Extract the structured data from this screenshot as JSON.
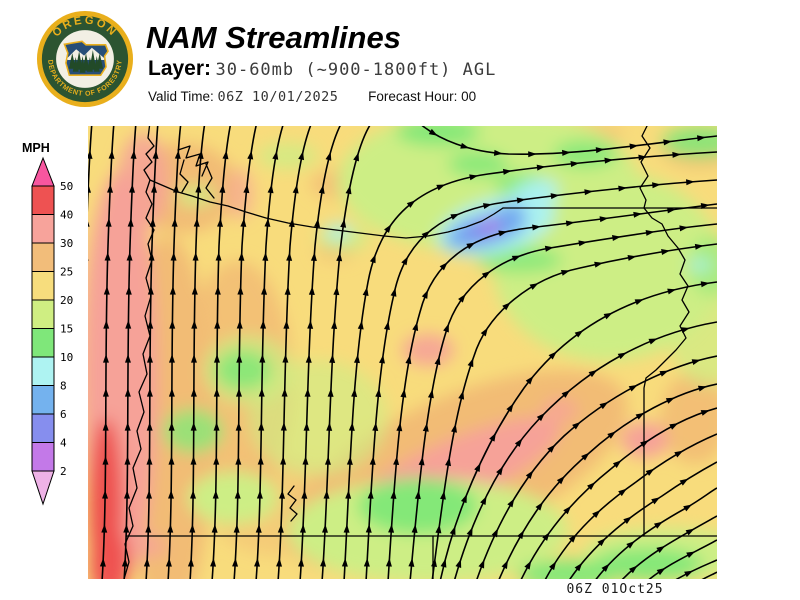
{
  "header": {
    "title": "NAM Streamlines",
    "layer_label": "Layer:",
    "layer_value": "30-60mb (~900-1800ft) AGL",
    "valid_time_label": "Valid Time:",
    "valid_time_value": "06Z 10/01/2025",
    "forecast_hour_label": "Forecast Hour:",
    "forecast_hour_value": "00"
  },
  "logo": {
    "text_top": "OREGON",
    "text_bottom": "DEPARTMENT OF FORESTRY",
    "ring_color": "#2c5431",
    "gold_color": "#e9af1c"
  },
  "legend": {
    "title": "MPH",
    "ticks": [
      "50",
      "40",
      "30",
      "25",
      "20",
      "15",
      "10",
      "8",
      "6",
      "4",
      "2"
    ],
    "colors": {
      "above_max": "#f7569f",
      "bands": [
        "#ee5252",
        "#f7a39b",
        "#f2bd7a",
        "#f7dd7d",
        "#cfee82",
        "#7fe77a",
        "#aef3f2",
        "#74b2ee",
        "#868eee",
        "#c379e8"
      ],
      "below_min": "#eeb2e6"
    }
  },
  "map": {
    "caption": "06Z 01Oct25",
    "base_color": "#f8dc7c"
  }
}
